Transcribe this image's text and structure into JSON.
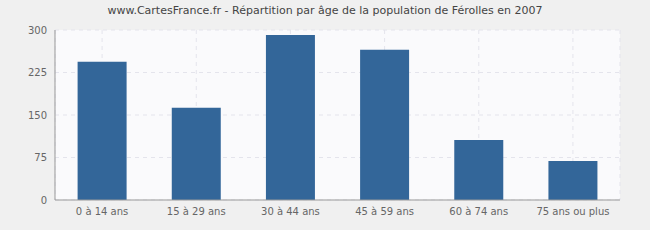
{
  "chart_data": {
    "type": "bar",
    "title": "www.CartesFrance.fr - Répartition par âge de la population de Férolles en 2007",
    "categories": [
      "0 à 14 ans",
      "15 à 29 ans",
      "30 à 44 ans",
      "45 à 59 ans",
      "60 à 74 ans",
      "75 ans ou plus"
    ],
    "values": [
      244,
      163,
      291,
      265,
      106,
      69
    ],
    "color": "#336699",
    "ylim": [
      0,
      300
    ],
    "yticks": [
      0,
      75,
      150,
      225,
      300
    ],
    "grid": true
  }
}
